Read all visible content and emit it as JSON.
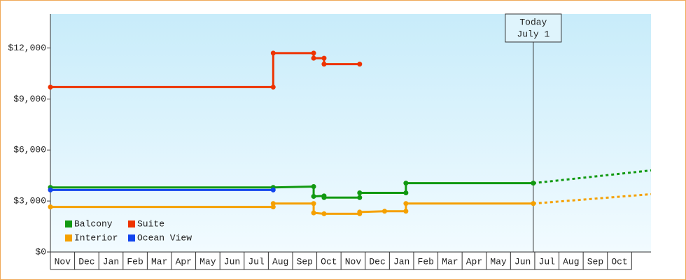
{
  "chart_data": {
    "type": "line",
    "categories": [
      "Nov",
      "Dec",
      "Jan",
      "Feb",
      "Mar",
      "Apr",
      "May",
      "Jun",
      "Jul",
      "Aug",
      "Sep",
      "Oct",
      "Nov",
      "Dec",
      "Jan",
      "Feb",
      "Mar",
      "Apr",
      "May",
      "Jun",
      "Jul",
      "Aug",
      "Sep",
      "Oct"
    ],
    "xlim": [
      0,
      24.8
    ],
    "ylim": [
      0,
      14000
    ],
    "yticks": [
      {
        "value": 0,
        "label": "$0"
      },
      {
        "value": 3000,
        "label": "$3,000"
      },
      {
        "value": 6000,
        "label": "$6,000"
      },
      {
        "value": 9000,
        "label": "$9,000"
      },
      {
        "value": 12000,
        "label": "$12,000"
      }
    ],
    "series": [
      {
        "name": "Balcony",
        "color": "#119911",
        "x": [
          0,
          9.2,
          10.87,
          10.87,
          11.3,
          11.3,
          12.77,
          12.77,
          14.68,
          14.68,
          19.94
        ],
        "values": [
          3800,
          3800,
          3850,
          3270,
          3300,
          3200,
          3200,
          3480,
          3480,
          4050,
          4050
        ],
        "forecast": {
          "x": [
            19.94,
            24.8
          ],
          "values": [
            4050,
            4800
          ]
        }
      },
      {
        "name": "Suite",
        "color": "#ee3300",
        "x": [
          0,
          9.2,
          9.2,
          10.87,
          10.87,
          11.3,
          11.3,
          12.77
        ],
        "values": [
          9700,
          9700,
          11700,
          11700,
          11400,
          11400,
          11050,
          11050
        ]
      },
      {
        "name": "Interior",
        "color": "#f5a000",
        "x": [
          0,
          9.2,
          9.2,
          10.87,
          10.87,
          11.3,
          12.77,
          12.77,
          13.8,
          14.68,
          14.68,
          19.94
        ],
        "values": [
          2650,
          2650,
          2850,
          2850,
          2300,
          2250,
          2250,
          2350,
          2400,
          2400,
          2850,
          2850
        ],
        "forecast": {
          "x": [
            19.94,
            24.8
          ],
          "values": [
            2850,
            3400
          ]
        }
      },
      {
        "name": "Ocean View",
        "color": "#1144ee",
        "x": [
          0,
          9.2
        ],
        "values": [
          3650,
          3650
        ]
      }
    ],
    "annotation": {
      "x": 19.94,
      "lines": [
        "Today",
        "July 1"
      ]
    }
  }
}
